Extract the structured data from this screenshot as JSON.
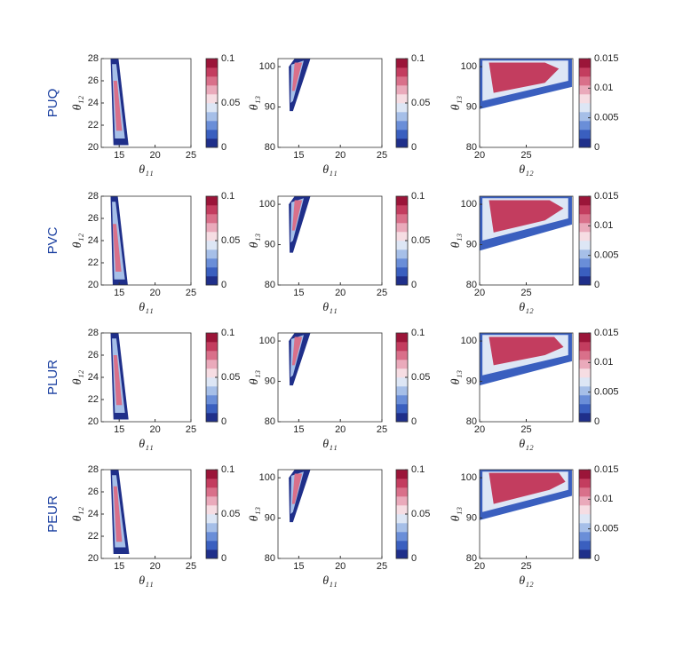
{
  "row_labels": [
    "PUQ",
    "PVC",
    "PLUR",
    "PEUR"
  ],
  "colormap": [
    "#1f2f8a",
    "#3a5fbf",
    "#6a8ed8",
    "#a6bfe8",
    "#dde6f5",
    "#f6dde3",
    "#eaaabb",
    "#d9708a",
    "#c33d5f",
    "#9b1539"
  ],
  "chart_data": [
    {
      "type": "density",
      "xlabel": "θ₁₁",
      "ylabel": "θ₁₂",
      "xlim": [
        12.5,
        25
      ],
      "ylim": [
        20,
        28
      ],
      "xticks": [
        15,
        20,
        25
      ],
      "yticks": [
        20,
        22,
        24,
        26,
        28
      ],
      "clim": [
        0,
        0.1
      ],
      "cticks": [
        0,
        0.05,
        0.1
      ],
      "contours": [
        {
          "level": 0.01,
          "x": [
            13.8,
            14.9,
            16.3,
            14.2
          ],
          "y": [
            28,
            28,
            20.2,
            20.2
          ]
        },
        {
          "level": 0.04,
          "x": [
            14.0,
            14.6,
            15.8,
            14.4
          ],
          "y": [
            27.5,
            27.5,
            20.8,
            20.8
          ]
        },
        {
          "level": 0.08,
          "x": [
            14.2,
            14.7,
            15.4,
            14.6
          ],
          "y": [
            26,
            26,
            21.5,
            21.5
          ]
        }
      ]
    },
    {
      "type": "density",
      "xlabel": "θ₁₁",
      "ylabel": "θ₁₃",
      "xlim": [
        12.5,
        25
      ],
      "ylim": [
        80,
        102
      ],
      "xticks": [
        15,
        20,
        25
      ],
      "yticks": [
        80,
        90,
        100
      ],
      "clim": [
        0,
        0.1
      ],
      "cticks": [
        0,
        0.05,
        0.1
      ],
      "contours": [
        {
          "level": 0.01,
          "x": [
            13.9,
            13.8,
            14.5,
            16.4,
            14.3
          ],
          "y": [
            89,
            100,
            102,
            102,
            89
          ]
        },
        {
          "level": 0.04,
          "x": [
            14.0,
            14.1,
            15.6,
            14.3
          ],
          "y": [
            91,
            100.5,
            101.5,
            91.5
          ]
        },
        {
          "level": 0.08,
          "x": [
            14.2,
            14.5,
            15.4,
            14.5
          ],
          "y": [
            94,
            101,
            101,
            94
          ]
        }
      ]
    },
    {
      "type": "density",
      "xlabel": "θ₁₂",
      "ylabel": "θ₁₃",
      "xlim": [
        20,
        30
      ],
      "ylim": [
        80,
        102
      ],
      "xticks": [
        20,
        25
      ],
      "yticks": [
        80,
        90,
        100
      ],
      "clim": [
        0,
        0.015
      ],
      "cticks": [
        0,
        0.005,
        0.01,
        0.015
      ],
      "contours": [
        {
          "level": 0.0015,
          "x": [
            20,
            29.9,
            29.9,
            20
          ],
          "y": [
            102,
            102,
            95,
            89.5
          ]
        },
        {
          "level": 0.006,
          "x": [
            20.3,
            29.5,
            29.5,
            20.3
          ],
          "y": [
            101.5,
            101.5,
            96.5,
            91.5
          ]
        },
        {
          "level": 0.012,
          "x": [
            21,
            27,
            28.5,
            27,
            21.5
          ],
          "y": [
            101,
            101,
            99.5,
            96,
            93.5
          ]
        }
      ]
    },
    {
      "type": "density",
      "xlabel": "θ₁₁",
      "ylabel": "θ₁₂",
      "xlim": [
        12.5,
        25
      ],
      "ylim": [
        20,
        28
      ],
      "xticks": [
        15,
        20,
        25
      ],
      "yticks": [
        20,
        22,
        24,
        26,
        28
      ],
      "clim": [
        0,
        0.1
      ],
      "cticks": [
        0,
        0.05,
        0.1
      ],
      "contours": [
        {
          "level": 0.01,
          "x": [
            13.8,
            14.8,
            16.2,
            14.1
          ],
          "y": [
            28,
            28,
            20,
            20
          ]
        },
        {
          "level": 0.04,
          "x": [
            14.0,
            14.5,
            15.8,
            14.3
          ],
          "y": [
            27.5,
            27.5,
            20.5,
            20.5
          ]
        },
        {
          "level": 0.08,
          "x": [
            14.1,
            14.6,
            15.3,
            14.5
          ],
          "y": [
            25.5,
            25.5,
            21.2,
            21.2
          ]
        }
      ]
    },
    {
      "type": "density",
      "xlabel": "θ₁₁",
      "ylabel": "θ₁₃",
      "xlim": [
        12.5,
        25
      ],
      "ylim": [
        80,
        102
      ],
      "xticks": [
        15,
        20,
        25
      ],
      "yticks": [
        80,
        90,
        100
      ],
      "clim": [
        0,
        0.1
      ],
      "cticks": [
        0,
        0.05,
        0.1
      ],
      "contours": [
        {
          "level": 0.01,
          "x": [
            13.9,
            13.8,
            14.5,
            16.4,
            14.3
          ],
          "y": [
            88,
            100,
            102,
            102,
            88
          ]
        },
        {
          "level": 0.04,
          "x": [
            14.0,
            14.1,
            15.6,
            14.3
          ],
          "y": [
            90.5,
            100.5,
            101.5,
            91
          ]
        },
        {
          "level": 0.08,
          "x": [
            14.2,
            14.5,
            15.4,
            14.5
          ],
          "y": [
            93.5,
            101,
            101,
            93.5
          ]
        }
      ]
    },
    {
      "type": "density",
      "xlabel": "θ₁₂",
      "ylabel": "θ₁₃",
      "xlim": [
        20,
        30
      ],
      "ylim": [
        80,
        102
      ],
      "xticks": [
        20,
        25
      ],
      "yticks": [
        80,
        90,
        100
      ],
      "clim": [
        0,
        0.015
      ],
      "cticks": [
        0,
        0.005,
        0.01,
        0.015
      ],
      "contours": [
        {
          "level": 0.0015,
          "x": [
            20,
            29.9,
            29.9,
            20
          ],
          "y": [
            102,
            102,
            95,
            88.5
          ]
        },
        {
          "level": 0.006,
          "x": [
            20.3,
            29.5,
            29.5,
            20.3
          ],
          "y": [
            101.5,
            101.5,
            96.5,
            91
          ]
        },
        {
          "level": 0.012,
          "x": [
            21,
            27.5,
            29,
            27,
            21.5
          ],
          "y": [
            101,
            101,
            99,
            96,
            93
          ]
        }
      ]
    },
    {
      "type": "density",
      "xlabel": "θ₁₁",
      "ylabel": "θ₁₂",
      "xlim": [
        12.5,
        25
      ],
      "ylim": [
        20,
        28
      ],
      "xticks": [
        15,
        20,
        25
      ],
      "yticks": [
        20,
        22,
        24,
        26,
        28
      ],
      "clim": [
        0,
        0.1
      ],
      "cticks": [
        0,
        0.05,
        0.1
      ],
      "contours": [
        {
          "level": 0.01,
          "x": [
            13.8,
            14.9,
            16.3,
            14.2
          ],
          "y": [
            28,
            28,
            20.2,
            20.2
          ]
        },
        {
          "level": 0.04,
          "x": [
            14.0,
            14.6,
            15.8,
            14.4
          ],
          "y": [
            27.5,
            27.5,
            20.8,
            20.8
          ]
        },
        {
          "level": 0.08,
          "x": [
            14.2,
            14.7,
            15.4,
            14.6
          ],
          "y": [
            26,
            26,
            21.5,
            21.5
          ]
        }
      ]
    },
    {
      "type": "density",
      "xlabel": "θ₁₁",
      "ylabel": "θ₁₃",
      "xlim": [
        12.5,
        25
      ],
      "ylim": [
        80,
        102
      ],
      "xticks": [
        15,
        20,
        25
      ],
      "yticks": [
        80,
        90,
        100
      ],
      "clim": [
        0,
        0.1
      ],
      "cticks": [
        0,
        0.05,
        0.1
      ],
      "contours": [
        {
          "level": 0.01,
          "x": [
            13.9,
            13.8,
            14.5,
            16.4,
            14.3
          ],
          "y": [
            89,
            100,
            102,
            102,
            89
          ]
        },
        {
          "level": 0.04,
          "x": [
            14.0,
            14.1,
            15.6,
            14.3
          ],
          "y": [
            91,
            100.5,
            101.5,
            91.5
          ]
        },
        {
          "level": 0.08,
          "x": [
            14.2,
            14.5,
            15.4,
            14.5
          ],
          "y": [
            94,
            101,
            101,
            94
          ]
        }
      ]
    },
    {
      "type": "density",
      "xlabel": "θ₁₂",
      "ylabel": "θ₁₃",
      "xlim": [
        20,
        30
      ],
      "ylim": [
        80,
        102
      ],
      "xticks": [
        20,
        25
      ],
      "yticks": [
        80,
        90,
        100
      ],
      "clim": [
        0,
        0.015
      ],
      "cticks": [
        0,
        0.005,
        0.01,
        0.015
      ],
      "contours": [
        {
          "level": 0.0015,
          "x": [
            20,
            29.9,
            29.9,
            20
          ],
          "y": [
            102,
            102,
            95,
            89
          ]
        },
        {
          "level": 0.006,
          "x": [
            20.3,
            29.5,
            29.5,
            20.3
          ],
          "y": [
            101.5,
            101.5,
            96.5,
            91.5
          ]
        },
        {
          "level": 0.012,
          "x": [
            21,
            28,
            29,
            27,
            21.5
          ],
          "y": [
            101,
            101,
            98.5,
            96.5,
            94
          ]
        }
      ]
    },
    {
      "type": "density",
      "xlabel": "θ₁₁",
      "ylabel": "θ₁₂",
      "xlim": [
        12.5,
        25
      ],
      "ylim": [
        20,
        28
      ],
      "xticks": [
        15,
        20,
        25
      ],
      "yticks": [
        20,
        22,
        24,
        26,
        28
      ],
      "clim": [
        0,
        0.1
      ],
      "cticks": [
        0,
        0.05,
        0.1
      ],
      "contours": [
        {
          "level": 0.01,
          "x": [
            13.8,
            14.9,
            16.4,
            14.2
          ],
          "y": [
            28,
            28,
            20.4,
            20.4
          ]
        },
        {
          "level": 0.04,
          "x": [
            14.0,
            14.6,
            15.9,
            14.4
          ],
          "y": [
            27.5,
            27.5,
            21,
            21
          ]
        },
        {
          "level": 0.08,
          "x": [
            14.2,
            14.7,
            15.4,
            14.6
          ],
          "y": [
            26.5,
            26.5,
            21.5,
            21.5
          ]
        }
      ]
    },
    {
      "type": "density",
      "xlabel": "θ₁₁",
      "ylabel": "θ₁₃",
      "xlim": [
        12.5,
        25
      ],
      "ylim": [
        80,
        102
      ],
      "xticks": [
        15,
        20,
        25
      ],
      "yticks": [
        80,
        90,
        100
      ],
      "clim": [
        0,
        0.1
      ],
      "cticks": [
        0,
        0.05,
        0.1
      ],
      "contours": [
        {
          "level": 0.01,
          "x": [
            13.9,
            13.8,
            14.5,
            16.4,
            14.3
          ],
          "y": [
            89,
            100,
            102,
            102,
            89
          ]
        },
        {
          "level": 0.04,
          "x": [
            14.0,
            14.1,
            15.6,
            14.3
          ],
          "y": [
            91,
            100.5,
            101.5,
            91.5
          ]
        },
        {
          "level": 0.08,
          "x": [
            14.2,
            14.5,
            15.4,
            14.5
          ],
          "y": [
            93.5,
            101,
            101,
            93.5
          ]
        }
      ]
    },
    {
      "type": "density",
      "xlabel": "θ₁₂",
      "ylabel": "θ₁₃",
      "xlim": [
        20,
        30
      ],
      "ylim": [
        80,
        102
      ],
      "xticks": [
        20,
        25
      ],
      "yticks": [
        80,
        90,
        100
      ],
      "clim": [
        0,
        0.015
      ],
      "cticks": [
        0,
        0.005,
        0.01,
        0.015
      ],
      "contours": [
        {
          "level": 0.0015,
          "x": [
            20,
            29.9,
            29.9,
            20
          ],
          "y": [
            102,
            102,
            95.5,
            89.5
          ]
        },
        {
          "level": 0.006,
          "x": [
            20.3,
            29.5,
            29.5,
            20.3
          ],
          "y": [
            101.5,
            101.5,
            97,
            91.5
          ]
        },
        {
          "level": 0.012,
          "x": [
            21,
            28.5,
            29.2,
            27.5,
            21.5
          ],
          "y": [
            101.2,
            101.2,
            99,
            97,
            93.5
          ]
        }
      ]
    }
  ]
}
